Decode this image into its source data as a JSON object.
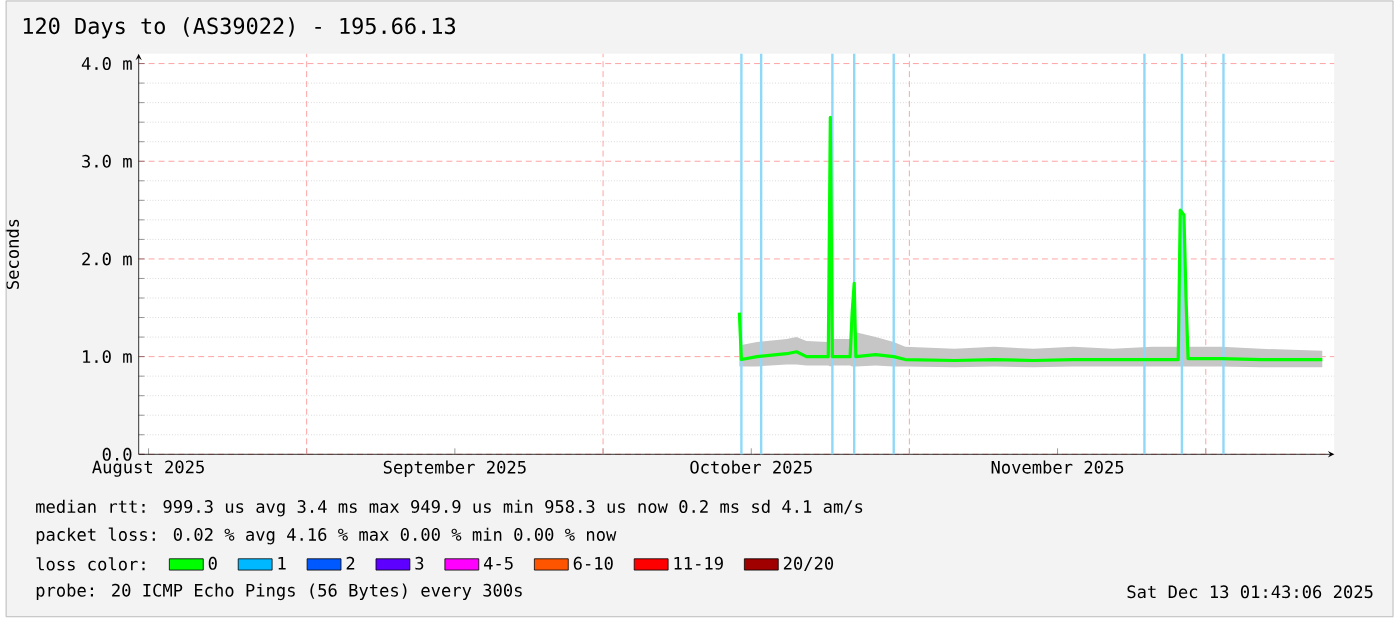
{
  "chart_data": {
    "type": "line",
    "title": "120 Days to (AS39022) - 195.66.13",
    "ylabel": "Seconds",
    "x": [
      "2025-10-14T19:00",
      "2025-10-15T00:00",
      "2025-10-16T14:00",
      "2025-10-19T14:00",
      "2025-10-20T14:00",
      "2025-10-21T14:00",
      "2025-10-23T19:00",
      "2025-10-24T00:00",
      "2025-10-24T05:00",
      "2025-10-26T00:00",
      "2025-10-26T05:00",
      "2025-10-26T10:00",
      "2025-10-26T14:00",
      "2025-10-28T14:00",
      "2025-10-30T10:00",
      "2025-10-31T14:00",
      "2025-11-05T14:00",
      "2025-11-09T14:00",
      "2025-11-13T14:00",
      "2025-11-17T14:00",
      "2025-11-21T14:00",
      "2025-11-25T14:00",
      "2025-11-28T05:00",
      "2025-11-28T10:00",
      "2025-11-28T19:00",
      "2025-11-29T00:00",
      "2025-11-29T05:00",
      "2025-12-02T14:00",
      "2025-12-06T14:00",
      "2025-12-12T19:00"
    ],
    "series": [
      {
        "name": "0",
        "color": "#00ff00",
        "values": [
          1.45,
          0.97,
          1.0,
          1.03,
          1.05,
          1.0,
          1.0,
          3.45,
          1.0,
          1.0,
          1.45,
          1.75,
          1.0,
          1.02,
          1.0,
          0.97,
          0.96,
          0.97,
          0.96,
          0.97,
          0.97,
          0.97,
          0.97,
          2.5,
          2.45,
          1.6,
          0.98,
          0.98,
          0.97,
          0.97
        ],
        "lower": [
          0.9,
          0.9,
          0.9,
          0.92,
          0.92,
          0.91,
          0.91,
          0.9,
          0.91,
          0.91,
          0.9,
          0.9,
          0.9,
          0.91,
          0.9,
          0.9,
          0.89,
          0.9,
          0.89,
          0.9,
          0.9,
          0.9,
          0.9,
          0.9,
          0.9,
          0.9,
          0.9,
          0.9,
          0.89,
          0.89
        ],
        "upper": [
          1.45,
          1.12,
          1.15,
          1.18,
          1.2,
          1.16,
          1.15,
          3.45,
          1.18,
          1.18,
          1.45,
          1.75,
          1.25,
          1.2,
          1.15,
          1.1,
          1.08,
          1.1,
          1.08,
          1.1,
          1.08,
          1.1,
          1.1,
          2.5,
          2.45,
          1.6,
          1.1,
          1.1,
          1.08,
          1.06
        ]
      },
      {
        "name": "1",
        "color": "#00b8ff",
        "values": [
          null,
          null,
          null,
          null,
          null,
          null,
          null,
          null,
          null,
          null,
          null,
          null,
          null,
          null,
          null,
          null,
          null,
          null,
          null,
          null,
          null,
          null,
          null,
          null,
          null,
          null,
          null,
          null,
          null,
          null
        ]
      },
      {
        "name": "2",
        "color": "#0059ff",
        "values": [
          null,
          null,
          null,
          null,
          null,
          null,
          null,
          null,
          null,
          null,
          null,
          null,
          null,
          null,
          null,
          null,
          null,
          null,
          null,
          null,
          null,
          null,
          null,
          null,
          null,
          null,
          null,
          null,
          null,
          null
        ]
      },
      {
        "name": "3",
        "color": "#5e00ff",
        "values": [
          null,
          null,
          null,
          null,
          null,
          null,
          null,
          null,
          null,
          null,
          null,
          null,
          null,
          null,
          null,
          null,
          null,
          null,
          null,
          null,
          null,
          null,
          null,
          null,
          null,
          null,
          null,
          null,
          null,
          null
        ]
      },
      {
        "name": "4-5",
        "color": "#ff00ff",
        "values": [
          null,
          null,
          null,
          null,
          null,
          null,
          null,
          null,
          null,
          null,
          null,
          null,
          null,
          null,
          null,
          null,
          null,
          null,
          null,
          null,
          null,
          null,
          null,
          null,
          null,
          null,
          null,
          null,
          null,
          null
        ]
      },
      {
        "name": "6-10",
        "color": "#ff5500",
        "values": [
          null,
          null,
          null,
          null,
          null,
          null,
          null,
          null,
          null,
          null,
          null,
          null,
          null,
          null,
          null,
          null,
          null,
          null,
          null,
          null,
          null,
          null,
          null,
          null,
          null,
          null,
          null,
          null,
          null,
          null
        ]
      },
      {
        "name": "11-19",
        "color": "#ff0000",
        "values": [
          null,
          null,
          null,
          null,
          null,
          null,
          null,
          null,
          null,
          null,
          null,
          null,
          null,
          null,
          null,
          null,
          null,
          null,
          null,
          null,
          null,
          null,
          null,
          null,
          null,
          null,
          null,
          null,
          null,
          null
        ]
      },
      {
        "name": "20/20",
        "color": "#a10000",
        "values": [
          null,
          null,
          null,
          null,
          null,
          null,
          null,
          null,
          null,
          null,
          null,
          null,
          null,
          null,
          null,
          null,
          null,
          null,
          null,
          null,
          null,
          null,
          null,
          null,
          null,
          null,
          null,
          null,
          null,
          null
        ]
      }
    ],
    "legend_title": "loss color:",
    "legend": "bottom",
    "xlim": [
      "2025-08-15T00:00",
      "2025-12-14T00:00"
    ],
    "xticks": [
      {
        "value": "2025-08-16",
        "label": "August 2025"
      },
      {
        "value": "2025-09-01",
        "label": null
      },
      {
        "value": "2025-09-16",
        "label": "September 2025"
      },
      {
        "value": "2025-10-01",
        "label": null
      },
      {
        "value": "2025-10-16",
        "label": "October 2025"
      },
      {
        "value": "2025-11-01",
        "label": null
      },
      {
        "value": "2025-11-16",
        "label": "November 2025"
      },
      {
        "value": "2025-12-01",
        "label": null
      }
    ],
    "ylim": [
      0,
      4.1
    ],
    "yticks": [
      {
        "value": 0,
        "label": "0.0"
      },
      {
        "value": 1,
        "label": "1.0 m"
      },
      {
        "value": 2,
        "label": "2.0 m"
      },
      {
        "value": 3,
        "label": "3.0 m"
      },
      {
        "value": 4,
        "label": "4.0 m"
      }
    ],
    "grid": true,
    "ref_lines": [
      {
        "axis": "x",
        "value": "2025-10-15T00:00",
        "color": "#8fd8f8"
      },
      {
        "axis": "x",
        "value": "2025-10-17T00:00",
        "color": "#8fd8f8"
      },
      {
        "axis": "x",
        "value": "2025-10-24T05:00",
        "color": "#8fd8f8"
      },
      {
        "axis": "x",
        "value": "2025-10-26T10:00",
        "color": "#8fd8f8"
      },
      {
        "axis": "x",
        "value": "2025-10-30T10:00",
        "color": "#8fd8f8"
      },
      {
        "axis": "x",
        "value": "2025-11-24T19:00",
        "color": "#8fd8f8"
      },
      {
        "axis": "x",
        "value": "2025-11-28T14:00",
        "color": "#8fd8f8"
      },
      {
        "axis": "x",
        "value": "2025-12-02T19:00",
        "color": "#8fd8f8"
      }
    ],
    "annotations": [
      "median rtt:  999.3 us avg   3.4 ms max   949.9 us min   958.3 us now   0.2 ms sd   4.1   am/s",
      "packet loss: 0.02 % avg  4.16 % max  0.00 % min  0.00 % now",
      "probe:       20 ICMP Echo Pings (56 Bytes) every 300s",
      "Sat Dec 13 01:43:06 2025"
    ]
  }
}
